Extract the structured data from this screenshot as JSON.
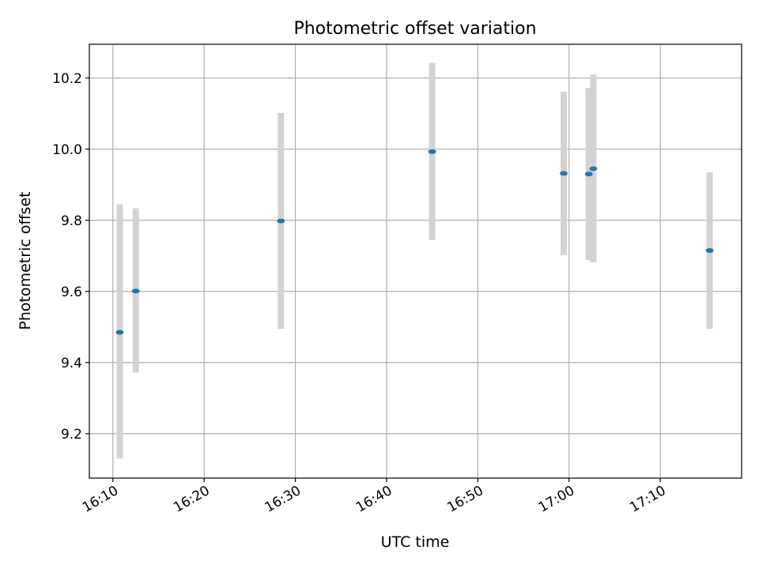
{
  "chart_data": {
    "type": "scatter",
    "title": "Photometric offset variation",
    "xlabel": "UTC time",
    "ylabel": "Photometric offset",
    "x_ticks": [
      "16:10",
      "16:20",
      "16:30",
      "16:40",
      "16:50",
      "17:00",
      "17:10"
    ],
    "y_ticks": [
      "9.2",
      "9.4",
      "9.6",
      "9.8",
      "10.0",
      "10.2"
    ],
    "xlim": [
      "16:07:25",
      "17:18:55"
    ],
    "ylim": [
      9.075,
      10.295
    ],
    "grid": true,
    "points": [
      {
        "x": "16:10:45",
        "y": 9.485,
        "err_low": 9.13,
        "err_high": 9.845
      },
      {
        "x": "16:12:30",
        "y": 9.601,
        "err_low": 9.372,
        "err_high": 9.834
      },
      {
        "x": "16:28:25",
        "y": 9.798,
        "err_low": 9.495,
        "err_high": 10.102
      },
      {
        "x": "16:45:00",
        "y": 9.993,
        "err_low": 9.745,
        "err_high": 10.243
      },
      {
        "x": "16:59:25",
        "y": 9.932,
        "err_low": 9.702,
        "err_high": 10.162
      },
      {
        "x": "17:02:10",
        "y": 9.93,
        "err_low": 9.688,
        "err_high": 10.172
      },
      {
        "x": "17:02:40",
        "y": 9.945,
        "err_low": 9.682,
        "err_high": 10.21
      },
      {
        "x": "17:15:25",
        "y": 9.715,
        "err_low": 9.495,
        "err_high": 9.935
      }
    ],
    "colors": {
      "marker": "#1f77b4",
      "error_bar": "#d3d3d3",
      "grid": "#b0b0b0"
    }
  }
}
